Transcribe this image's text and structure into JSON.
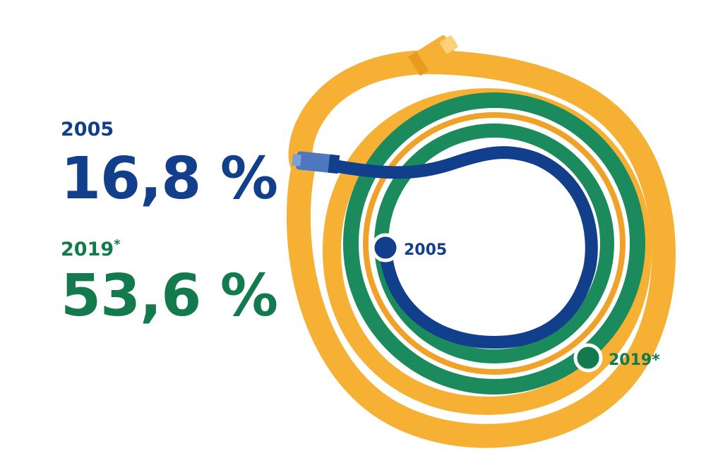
{
  "chart_data": {
    "type": "radial_cable",
    "title": "",
    "series": [
      {
        "year": "2005",
        "value_label": "16,8 %",
        "value": 16.8,
        "color": "#123f8c"
      },
      {
        "year": "2019*",
        "year_main": "2019",
        "year_mark": "*",
        "value_label": "53,6 %",
        "value": 53.6,
        "color": "#137a4d"
      }
    ],
    "background_cable_color": "#f6b135"
  }
}
